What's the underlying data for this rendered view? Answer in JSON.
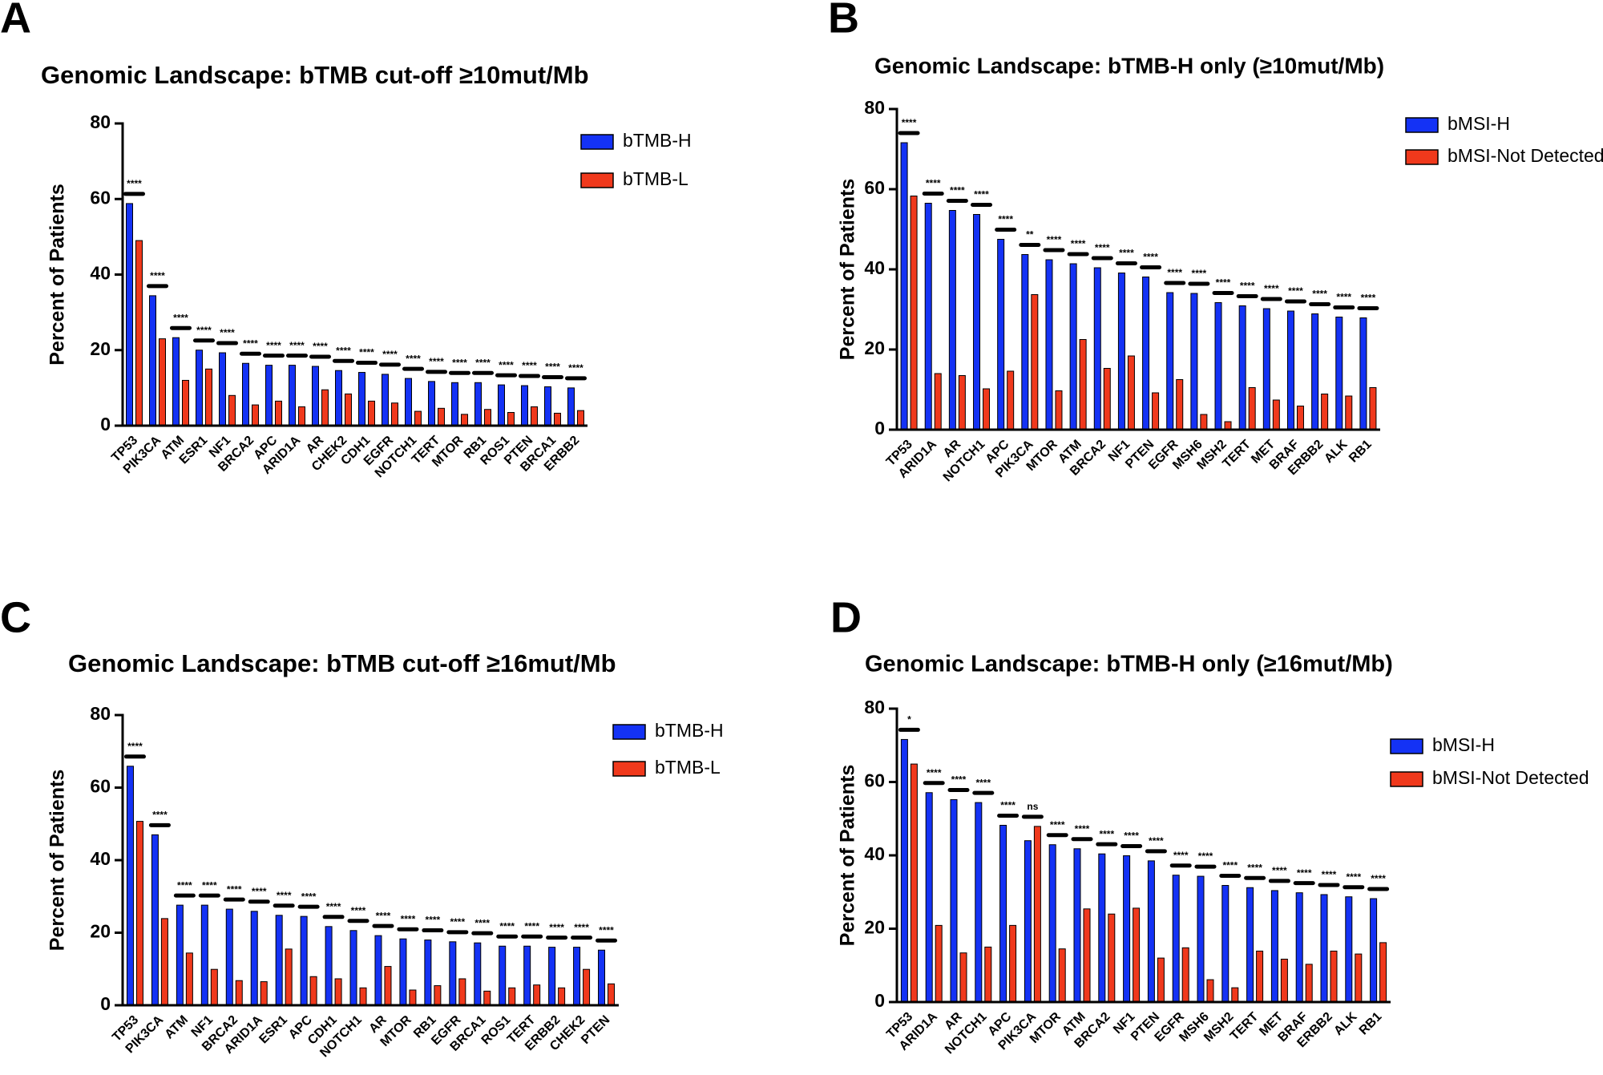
{
  "chart_data": [
    {
      "type": "bar",
      "panel_label": "A",
      "title": "Genomic Landscape: bTMB cut-off ≥10mut/Mb",
      "ylabel": "Percent of Patients",
      "categories": [
        "TP53",
        "PIK3CA",
        "ATM",
        "ESR1",
        "NF1",
        "BRCA2",
        "APC",
        "ARID1A",
        "AR",
        "CHEK2",
        "CDH1",
        "EGFR",
        "NOTCH1",
        "TERT",
        "MTOR",
        "RB1",
        "ROS1",
        "PTEN",
        "BRCA1",
        "ERBB2"
      ],
      "series": [
        {
          "name": "bTMB-H",
          "color": "#1432f5",
          "values": [
            58.8,
            34.4,
            23.3,
            20,
            19.3,
            16.5,
            16,
            16,
            15.7,
            14.6,
            14.1,
            13.6,
            12.5,
            11.7,
            11.4,
            11.4,
            10.8,
            10.6,
            10.3,
            10
          ]
        },
        {
          "name": "bTMB-L",
          "color": "#f0391c",
          "values": [
            49,
            23,
            12,
            15,
            8,
            5.5,
            6.5,
            5,
            9.5,
            8.4,
            6.5,
            6,
            3.8,
            4.6,
            3,
            4.3,
            3.5,
            5,
            3.3,
            4
          ]
        }
      ],
      "significance": [
        "****",
        "****",
        "****",
        "****",
        "****",
        "****",
        "****",
        "****",
        "****",
        "****",
        "****",
        "****",
        "****",
        "****",
        "****",
        "****",
        "****",
        "****",
        "****",
        "****"
      ],
      "ylim": [
        0,
        80
      ],
      "yticks": [
        0,
        20,
        40,
        60,
        80
      ],
      "legend": "upper right"
    },
    {
      "type": "bar",
      "panel_label": "B",
      "title": "Genomic Landscape: bTMB-H only (≥10mut/Mb)",
      "ylabel": "Percent of Patients",
      "categories": [
        "TP53",
        "ARID1A",
        "AR",
        "NOTCH1",
        "APC",
        "PIK3CA",
        "MTOR",
        "ATM",
        "BRCA2",
        "NF1",
        "PTEN",
        "EGFR",
        "MSH6",
        "MSH2",
        "TERT",
        "MET",
        "BRAF",
        "ERBB2",
        "ALK",
        "RB1"
      ],
      "series": [
        {
          "name": "bMSI-H",
          "color": "#1432f5",
          "values": [
            71.6,
            56.5,
            54.7,
            53.7,
            47.5,
            43.7,
            42.4,
            41.4,
            40.4,
            39.1,
            38.1,
            34.2,
            34,
            31.7,
            30.9,
            30.2,
            29.6,
            28.9,
            28.1,
            27.9
          ]
        },
        {
          "name": "bMSI-Not Detected",
          "color": "#f0391c",
          "values": [
            58.3,
            14,
            13.5,
            10.2,
            14.6,
            33.7,
            9.7,
            22.5,
            15.3,
            18.4,
            9.2,
            12.5,
            3.8,
            2,
            10.5,
            7.4,
            5.9,
            8.9,
            8.4,
            10.5
          ]
        }
      ],
      "significance": [
        "****",
        "****",
        "****",
        "****",
        "****",
        "**",
        "****",
        "****",
        "****",
        "****",
        "****",
        "****",
        "****",
        "****",
        "****",
        "****",
        "****",
        "****",
        "****",
        "****"
      ],
      "ylim": [
        0,
        80
      ],
      "yticks": [
        0,
        20,
        40,
        60,
        80
      ],
      "legend": "upper right"
    },
    {
      "type": "bar",
      "panel_label": "C",
      "title": "Genomic Landscape: bTMB cut-off ≥16mut/Mb",
      "ylabel": "Percent of Patients",
      "categories": [
        "TP53",
        "PIK3CA",
        "ATM",
        "NF1",
        "BRCA2",
        "ARID1A",
        "ESR1",
        "APC",
        "CDH1",
        "NOTCH1",
        "AR",
        "MTOR",
        "RB1",
        "EGFR",
        "BRCA1",
        "ROS1",
        "TERT",
        "ERBB2",
        "CHEK2",
        "PTEN"
      ],
      "series": [
        {
          "name": "bTMB-H",
          "color": "#1432f5",
          "values": [
            65.9,
            47,
            27.6,
            27.6,
            26.5,
            25.9,
            24.8,
            24.5,
            21.7,
            20.6,
            19.2,
            18.3,
            18,
            17.5,
            17.2,
            16.3,
            16.3,
            16,
            16,
            15.2
          ]
        },
        {
          "name": "bTMB-L",
          "color": "#f0391c",
          "values": [
            50.7,
            23.9,
            14.4,
            9.9,
            6.8,
            6.5,
            15.5,
            7.9,
            7.3,
            4.8,
            10.7,
            4.2,
            5.4,
            7.3,
            3.9,
            4.8,
            5.6,
            4.8,
            9.9,
            5.9
          ]
        }
      ],
      "significance": [
        "****",
        "****",
        "****",
        "****",
        "****",
        "****",
        "****",
        "****",
        "****",
        "****",
        "****",
        "****",
        "****",
        "****",
        "****",
        "****",
        "****",
        "****",
        "****",
        "****"
      ],
      "ylim": [
        0,
        80
      ],
      "yticks": [
        0,
        20,
        40,
        60,
        80
      ],
      "legend": "upper right"
    },
    {
      "type": "bar",
      "panel_label": "D",
      "title": "Genomic Landscape: bTMB-H only (≥16mut/Mb)",
      "ylabel": "Percent of Patients",
      "categories": [
        "TP53",
        "ARID1A",
        "AR",
        "NOTCH1",
        "APC",
        "PIK3CA",
        "MTOR",
        "ATM",
        "BRCA2",
        "NF1",
        "PTEN",
        "EGFR",
        "MSH6",
        "MSH2",
        "TERT",
        "MET",
        "BRAF",
        "ERBB2",
        "ALK",
        "RB1"
      ],
      "series": [
        {
          "name": "bMSI-H",
          "color": "#1432f5",
          "values": [
            71.6,
            57.1,
            55.2,
            54.4,
            48.2,
            44,
            42.9,
            41.8,
            40.4,
            39.9,
            38.5,
            34.6,
            34.3,
            31.8,
            31.2,
            30.4,
            29.8,
            29.3,
            28.7,
            28.2
          ]
        },
        {
          "name": "bMSI-Not Detected",
          "color": "#f0391c",
          "values": [
            64.9,
            20.9,
            13.4,
            15,
            20.9,
            47.9,
            14.5,
            25.4,
            24,
            25.6,
            12,
            14.8,
            6.1,
            3.9,
            13.9,
            11.7,
            10.3,
            13.9,
            13.1,
            16.2
          ]
        }
      ],
      "significance": [
        "*",
        "****",
        "****",
        "****",
        "****",
        "ns",
        "****",
        "****",
        "****",
        "****",
        "****",
        "****",
        "****",
        "****",
        "****",
        "****",
        "****",
        "****",
        "****",
        "****"
      ],
      "ylim": [
        0,
        80
      ],
      "yticks": [
        0,
        20,
        40,
        60,
        80
      ],
      "legend": "upper right"
    }
  ]
}
